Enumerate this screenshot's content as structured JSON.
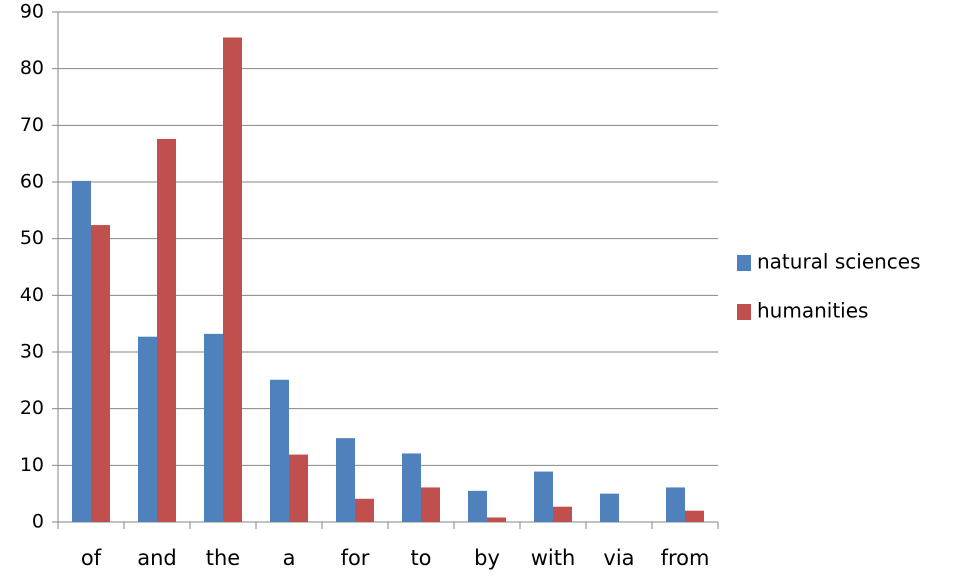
{
  "chart_data": {
    "type": "bar",
    "categories": [
      "of",
      "and",
      "the",
      "a",
      "for",
      "to",
      "by",
      "with",
      "via",
      "from"
    ],
    "series": [
      {
        "name": "natural sciences",
        "color": "#4f81bd",
        "values": [
          60.2,
          32.7,
          33.2,
          25.1,
          14.8,
          12.1,
          5.5,
          8.9,
          5.0,
          6.1
        ]
      },
      {
        "name": "humanities",
        "color": "#c0504d",
        "values": [
          52.4,
          67.6,
          85.5,
          11.9,
          4.1,
          6.1,
          0.8,
          2.7,
          0,
          2.0
        ]
      }
    ],
    "ylim": [
      0,
      90
    ],
    "yticks": [
      0,
      10,
      20,
      30,
      40,
      50,
      60,
      70,
      80,
      90
    ],
    "grid": true,
    "legend": "right"
  }
}
